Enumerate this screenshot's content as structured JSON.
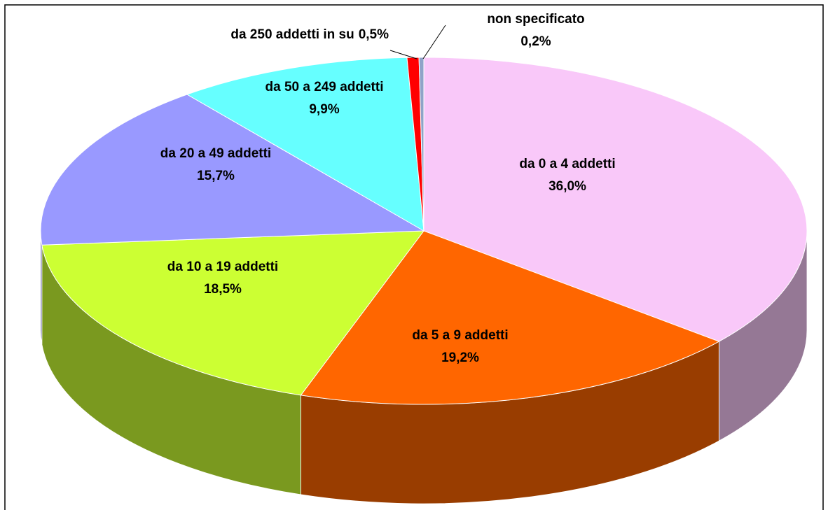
{
  "chart_data": {
    "type": "pie",
    "categories": [
      "da 0 a 4 addetti",
      "da 5 a 9 addetti",
      "da 10 a 19 addetti",
      "da 20 a 49 addetti",
      "da 50 a 249 addetti",
      "da 250 addetti in su",
      "non specificato"
    ],
    "values": [
      36.0,
      19.2,
      18.5,
      15.7,
      9.9,
      0.5,
      0.2
    ],
    "value_labels": [
      "36,0%",
      "19,2%",
      "18,5%",
      "15,7%",
      "9,9%",
      "0,5%",
      "0,2%"
    ],
    "colors": [
      "#f9c8f9",
      "#ff6600",
      "#ccff33",
      "#9999ff",
      "#66ffff",
      "#ff0000",
      "#8fa3c8"
    ]
  }
}
